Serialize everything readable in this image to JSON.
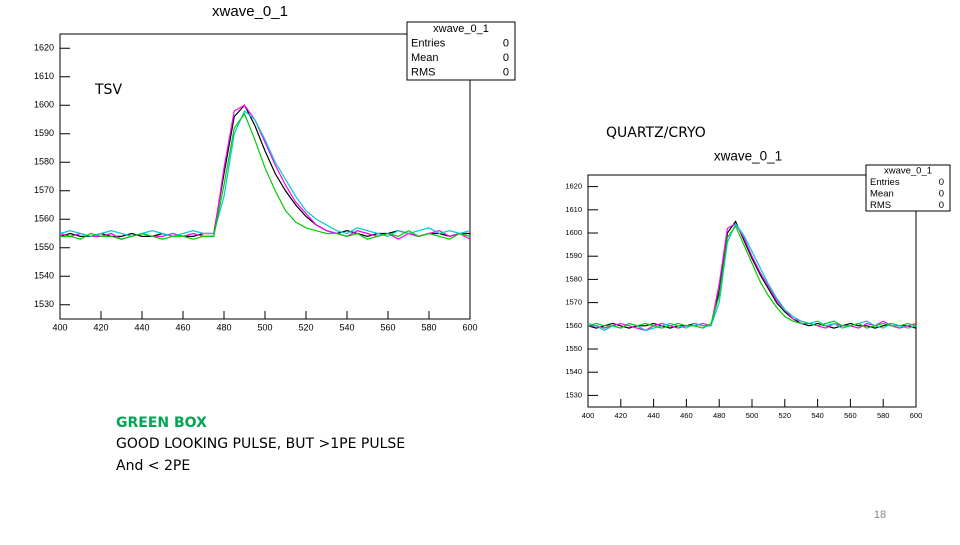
{
  "slide": {
    "label_left": "TSV",
    "label_right": "QUARTZ/CRYO",
    "note_title": "GREEN BOX",
    "note_line1": "GOOD LOOKING PULSE,  BUT >1PE PULSE",
    "note_line2": "And < 2PE",
    "page_number": "18"
  },
  "chart_data": [
    {
      "type": "line",
      "title": "xwave_0_1",
      "stats": {
        "title": "xwave_0_1",
        "entries": [
          {
            "label": "Entries",
            "value": 0
          },
          {
            "label": "Mean",
            "value": 0
          },
          {
            "label": "RMS",
            "value": 0
          }
        ]
      },
      "x": [
        400,
        405,
        410,
        415,
        420,
        425,
        430,
        435,
        440,
        445,
        450,
        455,
        460,
        465,
        470,
        475,
        480,
        485,
        490,
        495,
        500,
        505,
        510,
        515,
        520,
        525,
        530,
        535,
        540,
        545,
        550,
        555,
        560,
        565,
        570,
        575,
        580,
        585,
        590,
        595,
        600
      ],
      "xlim": [
        400,
        600
      ],
      "xticks": [
        400,
        420,
        440,
        460,
        480,
        500,
        520,
        540,
        560,
        580,
        600
      ],
      "ylim": [
        1525,
        1625
      ],
      "yticks": [
        1530,
        1540,
        1550,
        1560,
        1570,
        1580,
        1590,
        1600,
        1610,
        1620
      ],
      "series": [
        {
          "color": "#000000",
          "values": [
            1554,
            1555,
            1554,
            1554,
            1555,
            1554,
            1554,
            1555,
            1554,
            1554,
            1555,
            1554,
            1554,
            1554,
            1555,
            1555,
            1576,
            1596,
            1600,
            1593,
            1584,
            1576,
            1570,
            1565,
            1561,
            1558,
            1556,
            1555,
            1556,
            1555,
            1554,
            1555,
            1555,
            1556,
            1555,
            1554,
            1555,
            1555,
            1554,
            1555,
            1555
          ]
        },
        {
          "color": "#ff00ff",
          "values": [
            1555,
            1554,
            1555,
            1554,
            1554,
            1555,
            1553,
            1554,
            1555,
            1554,
            1554,
            1555,
            1554,
            1555,
            1554,
            1554,
            1578,
            1598,
            1600,
            1595,
            1587,
            1579,
            1572,
            1566,
            1562,
            1558,
            1556,
            1555,
            1554,
            1556,
            1555,
            1554,
            1555,
            1553,
            1555,
            1554,
            1555,
            1556,
            1554,
            1555,
            1553
          ]
        },
        {
          "color": "#00cccc",
          "values": [
            1555,
            1556,
            1555,
            1554,
            1555,
            1556,
            1555,
            1554,
            1555,
            1556,
            1555,
            1554,
            1555,
            1556,
            1555,
            1555,
            1568,
            1590,
            1598,
            1595,
            1588,
            1580,
            1574,
            1568,
            1563,
            1560,
            1558,
            1556,
            1555,
            1557,
            1556,
            1555,
            1554,
            1556,
            1555,
            1556,
            1557,
            1555,
            1556,
            1555,
            1556
          ]
        },
        {
          "color": "#00cc00",
          "values": [
            1554,
            1554,
            1553,
            1555,
            1554,
            1554,
            1553,
            1554,
            1555,
            1554,
            1553,
            1554,
            1554,
            1553,
            1554,
            1554,
            1572,
            1592,
            1597,
            1588,
            1578,
            1570,
            1563,
            1559,
            1557,
            1556,
            1555,
            1555,
            1554,
            1555,
            1553,
            1554,
            1555,
            1554,
            1556,
            1554,
            1555,
            1554,
            1553,
            1555,
            1554
          ]
        }
      ]
    },
    {
      "type": "line",
      "title": "xwave_0_1",
      "stats": {
        "title": "xwave_0_1",
        "entries": [
          {
            "label": "Entries",
            "value": 0
          },
          {
            "label": "Mean",
            "value": 0
          },
          {
            "label": "RMS",
            "value": 0
          }
        ]
      },
      "x": [
        400,
        405,
        410,
        415,
        420,
        425,
        430,
        435,
        440,
        445,
        450,
        455,
        460,
        465,
        470,
        475,
        480,
        485,
        490,
        495,
        500,
        505,
        510,
        515,
        520,
        525,
        530,
        535,
        540,
        545,
        550,
        555,
        560,
        565,
        570,
        575,
        580,
        585,
        590,
        595,
        600
      ],
      "xlim": [
        400,
        600
      ],
      "xticks": [
        400,
        420,
        440,
        460,
        480,
        500,
        520,
        540,
        560,
        580,
        600
      ],
      "ylim": [
        1525,
        1625
      ],
      "yticks": [
        1530,
        1540,
        1550,
        1560,
        1570,
        1580,
        1590,
        1600,
        1610,
        1620
      ],
      "series": [
        {
          "color": "#000000",
          "values": [
            1560,
            1559,
            1560,
            1561,
            1560,
            1559,
            1560,
            1560,
            1561,
            1560,
            1559,
            1560,
            1560,
            1561,
            1560,
            1560,
            1575,
            1600,
            1605,
            1597,
            1589,
            1582,
            1576,
            1570,
            1566,
            1563,
            1561,
            1560,
            1561,
            1560,
            1559,
            1560,
            1561,
            1560,
            1560,
            1559,
            1560,
            1561,
            1560,
            1560,
            1559
          ]
        },
        {
          "color": "#ff00ff",
          "values": [
            1560,
            1560,
            1559,
            1560,
            1561,
            1560,
            1559,
            1558,
            1560,
            1561,
            1560,
            1559,
            1560,
            1560,
            1561,
            1560,
            1578,
            1602,
            1604,
            1598,
            1590,
            1583,
            1577,
            1571,
            1567,
            1563,
            1562,
            1561,
            1560,
            1559,
            1561,
            1560,
            1560,
            1559,
            1561,
            1560,
            1562,
            1560,
            1559,
            1560,
            1561
          ]
        },
        {
          "color": "#00cccc",
          "values": [
            1561,
            1560,
            1558,
            1560,
            1559,
            1561,
            1560,
            1558,
            1559,
            1560,
            1561,
            1560,
            1559,
            1561,
            1560,
            1560,
            1570,
            1596,
            1604,
            1599,
            1592,
            1585,
            1578,
            1572,
            1567,
            1564,
            1562,
            1561,
            1562,
            1560,
            1561,
            1559,
            1560,
            1561,
            1562,
            1560,
            1559,
            1561,
            1560,
            1559,
            1560
          ]
        },
        {
          "color": "#00cc00",
          "values": [
            1560,
            1561,
            1560,
            1560,
            1559,
            1561,
            1560,
            1561,
            1560,
            1559,
            1560,
            1561,
            1560,
            1560,
            1559,
            1561,
            1573,
            1598,
            1603,
            1595,
            1587,
            1579,
            1573,
            1568,
            1564,
            1562,
            1561,
            1561,
            1560,
            1561,
            1562,
            1560,
            1560,
            1561,
            1559,
            1560,
            1561,
            1560,
            1560,
            1561,
            1560
          ]
        }
      ]
    }
  ]
}
